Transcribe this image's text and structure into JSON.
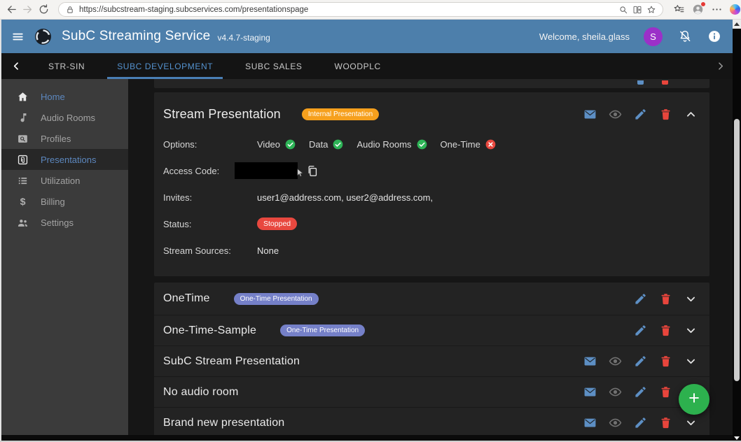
{
  "browser": {
    "url": "https://subcstream-staging.subcservices.com/presentationspage",
    "icons": [
      "back-icon",
      "forward-icon",
      "refresh-icon",
      "lock-icon",
      "search-icon",
      "split-screen-icon",
      "star-icon",
      "collections-icon",
      "profile-icon",
      "more-icon",
      "copilot-icon"
    ]
  },
  "header": {
    "title": "SubC Streaming Service",
    "version": "v4.4.7-staging",
    "welcome": "Welcome, sheila.glass",
    "avatar_initial": "S",
    "icons": [
      "menu-icon",
      "logo",
      "bell-off-icon",
      "info-icon"
    ]
  },
  "tabs": {
    "items": [
      {
        "label": "STR-SIN",
        "active": false
      },
      {
        "label": "SUBC DEVELOPMENT",
        "active": true
      },
      {
        "label": "SUBC SALES",
        "active": false
      },
      {
        "label": "WOODPLC",
        "active": false
      }
    ]
  },
  "sidebar": {
    "items": [
      {
        "label": "Home",
        "icon": "home-icon",
        "accent": true,
        "active": false
      },
      {
        "label": "Audio Rooms",
        "icon": "music-note-icon",
        "accent": false,
        "active": false
      },
      {
        "label": "Profiles",
        "icon": "magnifier-square-icon",
        "accent": false,
        "active": false
      },
      {
        "label": "Presentations",
        "icon": "paperclip-box-icon",
        "accent": true,
        "active": true
      },
      {
        "label": "Utilization",
        "icon": "list-icon",
        "accent": false,
        "active": false
      },
      {
        "label": "Billing",
        "icon": "dollar-icon",
        "accent": false,
        "active": false
      },
      {
        "label": "Settings",
        "icon": "people-icon",
        "accent": false,
        "active": false
      }
    ]
  },
  "clipped_row": {
    "icons": [
      "pencil-icon",
      "trash-icon"
    ]
  },
  "detail": {
    "title": "Stream Presentation",
    "type_badge": "Internal Presentation",
    "options_label": "Options:",
    "options": [
      {
        "label": "Video",
        "enabled": true
      },
      {
        "label": "Data",
        "enabled": true
      },
      {
        "label": "Audio Rooms",
        "enabled": true
      },
      {
        "label": "One-Time",
        "enabled": false
      }
    ],
    "access_label": "Access Code:",
    "access_redacted": true,
    "invites_label": "Invites:",
    "invites_value": "user1@address.com, user2@address.com,",
    "status_label": "Status:",
    "status_value": "Stopped",
    "sources_label": "Stream Sources:",
    "sources_value": "None",
    "actions": [
      "mail",
      "view",
      "edit",
      "delete",
      "collapse"
    ]
  },
  "list": {
    "rows": [
      {
        "title": "OneTime",
        "badge": "One-Time Presentation",
        "actions": [
          "edit",
          "delete",
          "expand"
        ]
      },
      {
        "title": "One-Time-Sample",
        "badge": "One-Time Presentation",
        "actions": [
          "edit",
          "delete",
          "expand"
        ]
      },
      {
        "title": "SubC Stream Presentation",
        "badge": null,
        "actions": [
          "mail",
          "view",
          "edit",
          "delete",
          "expand"
        ]
      },
      {
        "title": "No audio room",
        "badge": null,
        "actions": [
          "mail",
          "view",
          "edit",
          "delete",
          "expand"
        ]
      },
      {
        "title": "Brand new presentation",
        "badge": null,
        "actions": [
          "mail",
          "view",
          "edit",
          "delete",
          "expand"
        ]
      }
    ]
  },
  "fab": {
    "label": "+"
  },
  "colors": {
    "header_blue": "#4d7fab",
    "accent_blue": "#5492cf",
    "icon_blue": "#5d8fc4",
    "icon_red": "#e8453c",
    "check_green": "#2eb457",
    "status_red": "#e8483f",
    "badge_orange": "#f6a01d",
    "badge_indigo": "#7580c8",
    "fab_green": "#2db14e",
    "avatar_purple": "#9b30c8"
  }
}
